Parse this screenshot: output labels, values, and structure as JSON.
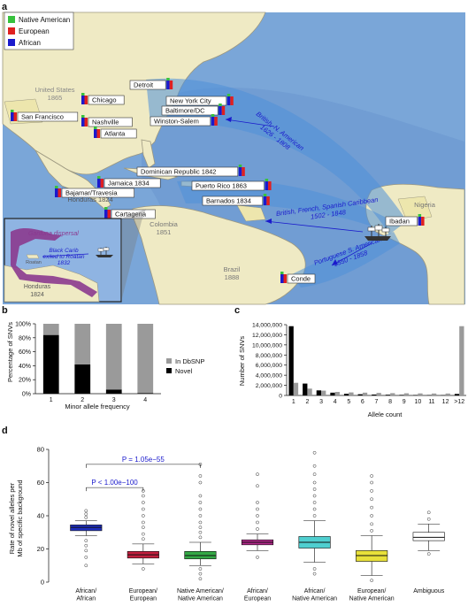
{
  "colors": {
    "ocean": "#6f9fd3",
    "ocean_light": "#a8c8ea",
    "land": "#efeac4",
    "land_stroke": "#9c9880",
    "route": "#3d7fcf",
    "native": "#37c23d",
    "european": "#e02020",
    "african": "#1a1acc",
    "gray_bar": "#9a9a9a",
    "dark_bar": "#000000",
    "aa": "#1f2fc0",
    "ee": "#c21f3e",
    "nn": "#33a845",
    "ae": "#b3268a",
    "an": "#4fcfd0",
    "en": "#e8e03a",
    "amb": "#ffffff"
  },
  "panel_a": {
    "label": "a",
    "legend": [
      "Native American",
      "European",
      "African"
    ],
    "regions": [
      {
        "id": "us",
        "lines": [
          "United States",
          "1865"
        ]
      },
      {
        "id": "honduras_main",
        "lines": [
          "Honduras 1824"
        ]
      },
      {
        "id": "colombia",
        "lines": [
          "Colombia",
          "1851"
        ]
      },
      {
        "id": "brazil",
        "lines": [
          "Brazil",
          "1888"
        ]
      },
      {
        "id": "nigeria",
        "lines": [
          "Nigeria"
        ]
      }
    ],
    "sites": [
      {
        "id": "detroit",
        "label": "Detroit"
      },
      {
        "id": "chicago",
        "label": "Chicago"
      },
      {
        "id": "nyc",
        "label": "New York City"
      },
      {
        "id": "baltimore",
        "label": "Baltimore/DC"
      },
      {
        "id": "sf",
        "label": "San Francisco"
      },
      {
        "id": "nashville",
        "label": "Nashville"
      },
      {
        "id": "winston",
        "label": "Winston-Salem"
      },
      {
        "id": "atlanta",
        "label": "Atlanta"
      },
      {
        "id": "dr",
        "label": "Dominican Republic 1842"
      },
      {
        "id": "jamaica",
        "label": "Jamaica 1834"
      },
      {
        "id": "pr",
        "label": "Puerto Rico 1863"
      },
      {
        "id": "bajamar",
        "label": "Bajamar/Travesia"
      },
      {
        "id": "barnados",
        "label": "Barnados 1834"
      },
      {
        "id": "cartagena",
        "label": "Cartagena"
      },
      {
        "id": "ibadan",
        "label": "Ibadan"
      },
      {
        "id": "conde",
        "label": "Conde"
      }
    ],
    "routes": [
      {
        "id": "british_na",
        "lines": [
          "British, N. American",
          "1626 - 1808"
        ]
      },
      {
        "id": "caribbean",
        "lines": [
          "British, French, Spanish Caribbean",
          "1502 - 1848"
        ]
      },
      {
        "id": "portuguese",
        "lines": [
          "Portuguese S. American",
          "1550 - 1858"
        ]
      }
    ],
    "inset": {
      "garifuna": "Garifuna dispersal",
      "carib_lines": [
        "Black Carib",
        "exiled to Roatan",
        "1832"
      ],
      "roatan": "Roatan",
      "honduras_lines": [
        "Honduras",
        "1824"
      ]
    }
  },
  "chart_data": [
    {
      "panel": "b",
      "type": "bar",
      "stacked": true,
      "xlabel": "Minor allele frequency",
      "ylabel": "Percentage of SNVs",
      "categories": [
        "1",
        "2",
        "3",
        "4"
      ],
      "ylim": [
        0,
        100
      ],
      "yticks": [
        "0%",
        "20%",
        "40%",
        "60%",
        "80%",
        "100%"
      ],
      "series": [
        {
          "name": "Novel",
          "values": [
            84,
            42,
            6,
            1
          ]
        },
        {
          "name": "In DbSNP",
          "values": [
            16,
            58,
            94,
            99
          ]
        }
      ],
      "legend": [
        "In DbSNP",
        "Novel"
      ]
    },
    {
      "panel": "c",
      "type": "bar",
      "xlabel": "Allele count",
      "ylabel": "Number of SNVs",
      "categories": [
        "1",
        "2",
        "3",
        "4",
        "5",
        "6",
        "7",
        "8",
        "9",
        "10",
        "11",
        "12",
        ">12"
      ],
      "ylim": [
        0,
        14000000
      ],
      "yticks": [
        "0",
        "2,000,000",
        "4,000,000",
        "6,000,000",
        "8,000,000",
        "10,000,000",
        "12,000,000",
        "14,000,000"
      ],
      "series": [
        {
          "name": "",
          "values": [
            13700000,
            2350000,
            1000000,
            550000,
            330000,
            240000,
            180000,
            140000,
            110000,
            90000,
            75000,
            60000,
            300000
          ]
        },
        {
          "name": "",
          "values": [
            2500000,
            1350000,
            950000,
            700000,
            600000,
            550000,
            500000,
            450000,
            420000,
            400000,
            380000,
            380000,
            13700000
          ]
        }
      ]
    },
    {
      "panel": "d",
      "type": "boxplot",
      "ylabel_lines": [
        "Rate of novel alleles per",
        "Mb of specific background"
      ],
      "ylim": [
        0,
        80
      ],
      "yticks": [
        "0",
        "20",
        "40",
        "60",
        "80"
      ],
      "groups": [
        {
          "lines": [
            "African/",
            "African"
          ],
          "q1": 31,
          "median": 33,
          "q3": 34.5,
          "whisker_low": 28,
          "whisker_high": 37,
          "outliers": [
            25,
            22,
            19,
            15,
            10,
            39,
            41,
            43
          ]
        },
        {
          "lines": [
            "European/",
            "European"
          ],
          "q1": 14.5,
          "median": 16.5,
          "q3": 18.5,
          "whisker_low": 11,
          "whisker_high": 23,
          "outliers": [
            8,
            26,
            29,
            33,
            36,
            40,
            44,
            48,
            52,
            55
          ]
        },
        {
          "lines": [
            "Native American/",
            "Native American"
          ],
          "q1": 14,
          "median": 16,
          "q3": 18.5,
          "whisker_low": 10,
          "whisker_high": 24,
          "outliers": [
            2,
            5,
            8,
            27,
            30,
            33,
            36,
            40,
            44,
            48,
            52,
            60,
            64,
            71
          ]
        },
        {
          "lines": [
            "African/",
            "European"
          ],
          "q1": 22.5,
          "median": 24,
          "q3": 25.5,
          "whisker_low": 19,
          "whisker_high": 29,
          "outliers": [
            15,
            32,
            36,
            40,
            44,
            48,
            58,
            65
          ]
        },
        {
          "lines": [
            "African/",
            "Native American"
          ],
          "q1": 20.5,
          "median": 24,
          "q3": 27.5,
          "whisker_low": 12,
          "whisker_high": 37,
          "outliers": [
            5,
            8,
            40,
            44,
            48,
            52,
            56,
            60,
            65,
            70,
            78
          ]
        },
        {
          "lines": [
            "European/",
            "Native American"
          ],
          "q1": 12.5,
          "median": 16,
          "q3": 19,
          "whisker_low": 4,
          "whisker_high": 28,
          "outliers": [
            1,
            31,
            35,
            40,
            45,
            50,
            55,
            60,
            64
          ]
        },
        {
          "lines": [
            "Ambiguous"
          ],
          "q1": 25,
          "median": 27,
          "q3": 30,
          "whisker_low": 19,
          "whisker_high": 35,
          "outliers": [
            17,
            38,
            42
          ]
        }
      ],
      "annotations": [
        {
          "text": "P = 1.05e−55",
          "from": 0,
          "to": 2
        },
        {
          "text": "P < 1.00e−100",
          "from": 0,
          "to": 1
        }
      ]
    }
  ],
  "panel_labels": {
    "b": "b",
    "c": "c",
    "d": "d"
  }
}
